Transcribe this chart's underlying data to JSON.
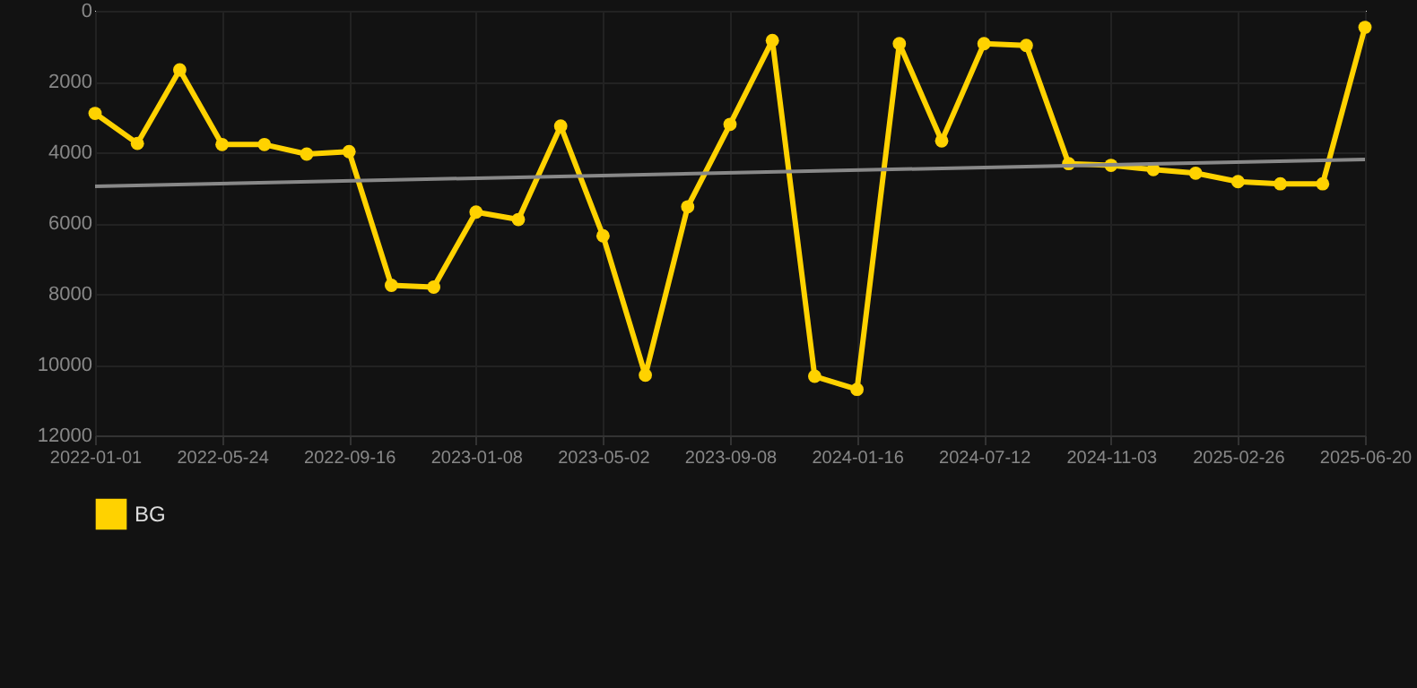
{
  "chart_data": {
    "type": "line",
    "categories": [
      "2022-01-01",
      null,
      null,
      "2022-05-24",
      null,
      null,
      "2022-09-16",
      null,
      null,
      "2023-01-08",
      null,
      null,
      "2023-05-02",
      null,
      null,
      "2023-09-08",
      null,
      null,
      "2024-01-16",
      null,
      null,
      "2024-07-12",
      null,
      null,
      "2024-11-03",
      null,
      null,
      "2025-02-26",
      null,
      null,
      "2025-06-20"
    ],
    "series": [
      {
        "name": "BG",
        "color": "#ffd200",
        "values": [
          2900,
          3750,
          1670,
          3780,
          3780,
          4050,
          3980,
          7760,
          7810,
          5690,
          5900,
          3260,
          6360,
          10300,
          5540,
          3210,
          840,
          10330,
          10700,
          930,
          3680,
          930,
          980,
          4320,
          4370,
          4490,
          4590,
          4830,
          4890,
          4890,
          470
        ],
        "marker": "circle"
      },
      {
        "type": "line",
        "color": "#888888",
        "values": [
          4960,
          null,
          null,
          null,
          null,
          null,
          null,
          null,
          null,
          null,
          null,
          null,
          null,
          null,
          null,
          null,
          null,
          null,
          null,
          null,
          null,
          null,
          null,
          null,
          null,
          null,
          null,
          null,
          null,
          null,
          4200
        ],
        "marker": "none"
      }
    ],
    "ylim": [
      12000,
      0
    ],
    "yticks": [
      0,
      2000,
      4000,
      6000,
      8000,
      10000,
      12000
    ],
    "grid": true,
    "legend": "bottom"
  }
}
